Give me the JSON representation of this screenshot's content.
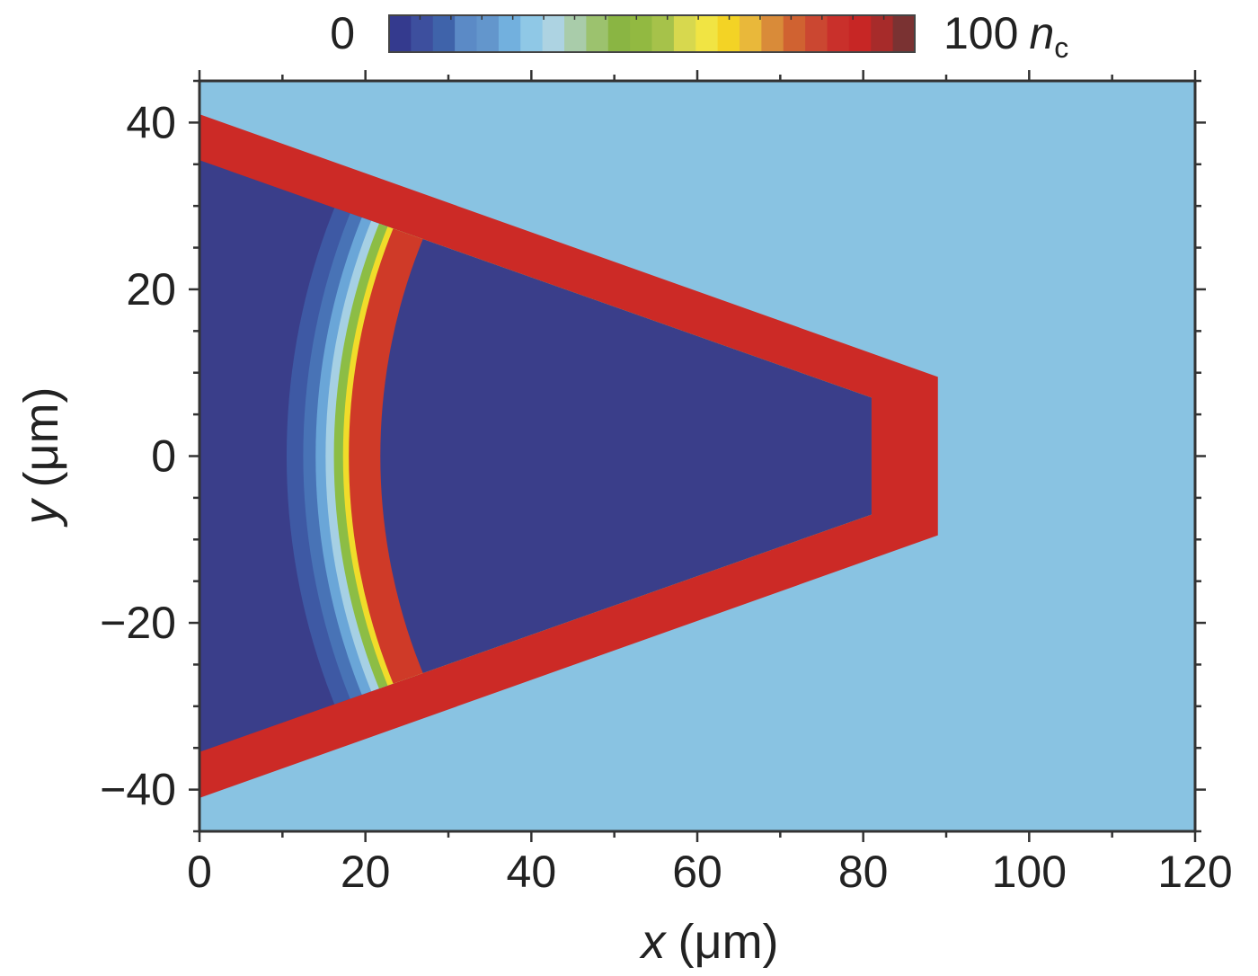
{
  "chart_data": {
    "type": "heatmap",
    "title": "",
    "xlabel": "x",
    "xlabel_unit": "(μm)",
    "ylabel": "y",
    "ylabel_unit": "(μm)",
    "xlim": [
      0,
      120
    ],
    "ylim": [
      -45,
      45
    ],
    "xticks": [
      0,
      20,
      40,
      60,
      80,
      100,
      120
    ],
    "xtick_labels": [
      "0",
      "20",
      "40",
      "60",
      "80",
      "100",
      "120"
    ],
    "yticks": [
      40,
      20,
      0,
      -20,
      -40
    ],
    "ytick_labels": [
      "40",
      "20",
      "0",
      "−20",
      "−40"
    ],
    "colorbar": {
      "min_label": "0",
      "max_label": "100",
      "unit_symbol": "n",
      "unit_subscript": "c",
      "placement": "top",
      "colors": [
        "#343a8e",
        "#3d4f9e",
        "#3f63aa",
        "#5b8ac6",
        "#6396cc",
        "#72b0de",
        "#8fc8e6",
        "#add3e2",
        "#a9ccaa",
        "#9cc26e",
        "#8ab543",
        "#92b941",
        "#a6c24a",
        "#d7d84e",
        "#f1e443",
        "#f3d325",
        "#e9b83a",
        "#d98b39",
        "#d06231",
        "#cb4731",
        "#c9302b",
        "#c72625",
        "#a72b2a",
        "#7a3232"
      ]
    },
    "background_density_color": "#89c3e2",
    "cone": {
      "wall_color": "#cc2a26",
      "interior_color": "#3a3e8a",
      "outer": [
        [
          0,
          41
        ],
        [
          89,
          9.5
        ],
        [
          89,
          -9.5
        ],
        [
          0,
          -41
        ]
      ],
      "inner": [
        [
          0,
          35.5
        ],
        [
          81,
          7
        ],
        [
          81,
          -7
        ],
        [
          0,
          -35.5
        ]
      ]
    },
    "foil": {
      "center": [
        91,
        0
      ],
      "outer_radius": 73,
      "inner_radius": 69.2,
      "color": "#cf3a28",
      "expansion_layers": [
        {
          "radius": 80.5,
          "color": "#3e59a4"
        },
        {
          "radius": 78.5,
          "color": "#4873b6"
        },
        {
          "radius": 77,
          "color": "#6aa6d8"
        },
        {
          "radius": 75.8,
          "color": "#a6d0e4"
        },
        {
          "radius": 74.8,
          "color": "#8cbd45"
        },
        {
          "radius": 73.7,
          "color": "#f0dc2a"
        }
      ]
    }
  }
}
